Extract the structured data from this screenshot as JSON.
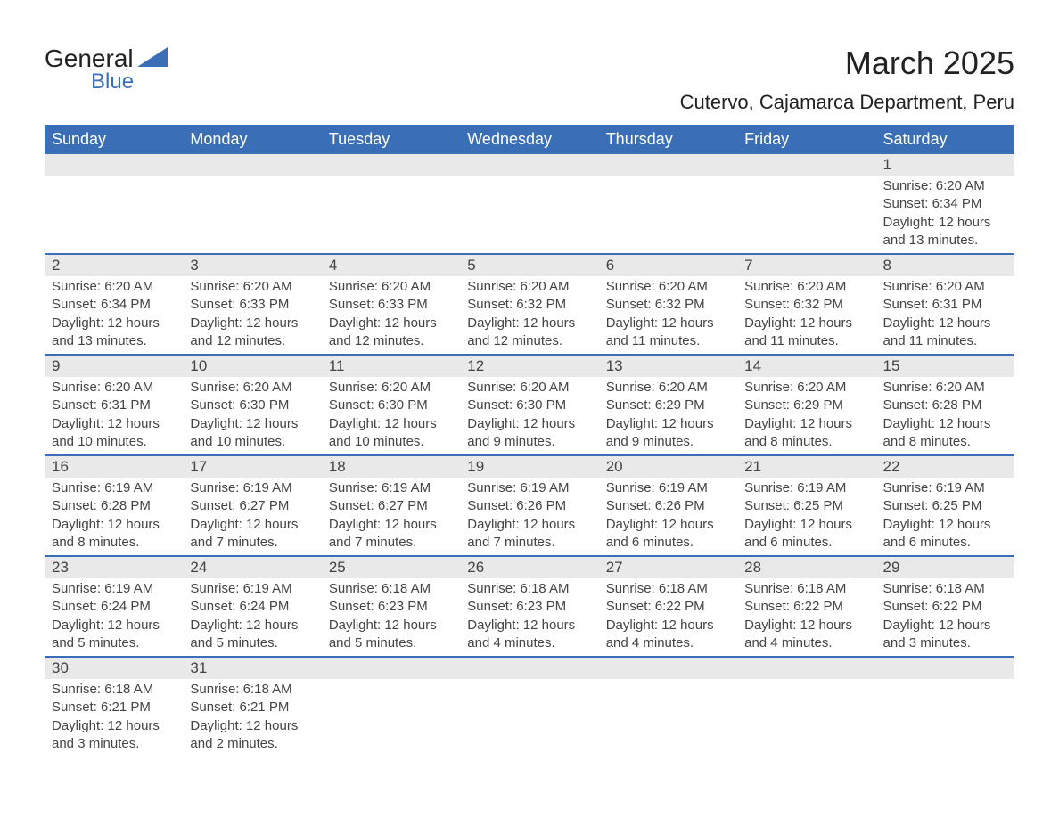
{
  "logo": {
    "text_general": "General",
    "text_blue": "Blue",
    "shape_color": "#3a6fb7"
  },
  "title": {
    "month": "March 2025",
    "location": "Cutervo, Cajamarca Department, Peru"
  },
  "colors": {
    "header_bg": "#3a6fb7",
    "header_text": "#ffffff",
    "daynum_bg": "#e9e9e9",
    "text": "#444444",
    "border": "#3a6fb7",
    "page_bg": "#ffffff"
  },
  "typography": {
    "month_title_fontsize": 36,
    "location_fontsize": 22,
    "day_header_fontsize": 18,
    "daynum_fontsize": 17,
    "body_fontsize": 15
  },
  "day_headers": [
    "Sunday",
    "Monday",
    "Tuesday",
    "Wednesday",
    "Thursday",
    "Friday",
    "Saturday"
  ],
  "weeks": [
    [
      {
        "num": "",
        "sunrise": "",
        "sunset": "",
        "daylight": ""
      },
      {
        "num": "",
        "sunrise": "",
        "sunset": "",
        "daylight": ""
      },
      {
        "num": "",
        "sunrise": "",
        "sunset": "",
        "daylight": ""
      },
      {
        "num": "",
        "sunrise": "",
        "sunset": "",
        "daylight": ""
      },
      {
        "num": "",
        "sunrise": "",
        "sunset": "",
        "daylight": ""
      },
      {
        "num": "",
        "sunrise": "",
        "sunset": "",
        "daylight": ""
      },
      {
        "num": "1",
        "sunrise": "Sunrise: 6:20 AM",
        "sunset": "Sunset: 6:34 PM",
        "daylight": "Daylight: 12 hours and 13 minutes."
      }
    ],
    [
      {
        "num": "2",
        "sunrise": "Sunrise: 6:20 AM",
        "sunset": "Sunset: 6:34 PM",
        "daylight": "Daylight: 12 hours and 13 minutes."
      },
      {
        "num": "3",
        "sunrise": "Sunrise: 6:20 AM",
        "sunset": "Sunset: 6:33 PM",
        "daylight": "Daylight: 12 hours and 12 minutes."
      },
      {
        "num": "4",
        "sunrise": "Sunrise: 6:20 AM",
        "sunset": "Sunset: 6:33 PM",
        "daylight": "Daylight: 12 hours and 12 minutes."
      },
      {
        "num": "5",
        "sunrise": "Sunrise: 6:20 AM",
        "sunset": "Sunset: 6:32 PM",
        "daylight": "Daylight: 12 hours and 12 minutes."
      },
      {
        "num": "6",
        "sunrise": "Sunrise: 6:20 AM",
        "sunset": "Sunset: 6:32 PM",
        "daylight": "Daylight: 12 hours and 11 minutes."
      },
      {
        "num": "7",
        "sunrise": "Sunrise: 6:20 AM",
        "sunset": "Sunset: 6:32 PM",
        "daylight": "Daylight: 12 hours and 11 minutes."
      },
      {
        "num": "8",
        "sunrise": "Sunrise: 6:20 AM",
        "sunset": "Sunset: 6:31 PM",
        "daylight": "Daylight: 12 hours and 11 minutes."
      }
    ],
    [
      {
        "num": "9",
        "sunrise": "Sunrise: 6:20 AM",
        "sunset": "Sunset: 6:31 PM",
        "daylight": "Daylight: 12 hours and 10 minutes."
      },
      {
        "num": "10",
        "sunrise": "Sunrise: 6:20 AM",
        "sunset": "Sunset: 6:30 PM",
        "daylight": "Daylight: 12 hours and 10 minutes."
      },
      {
        "num": "11",
        "sunrise": "Sunrise: 6:20 AM",
        "sunset": "Sunset: 6:30 PM",
        "daylight": "Daylight: 12 hours and 10 minutes."
      },
      {
        "num": "12",
        "sunrise": "Sunrise: 6:20 AM",
        "sunset": "Sunset: 6:30 PM",
        "daylight": "Daylight: 12 hours and 9 minutes."
      },
      {
        "num": "13",
        "sunrise": "Sunrise: 6:20 AM",
        "sunset": "Sunset: 6:29 PM",
        "daylight": "Daylight: 12 hours and 9 minutes."
      },
      {
        "num": "14",
        "sunrise": "Sunrise: 6:20 AM",
        "sunset": "Sunset: 6:29 PM",
        "daylight": "Daylight: 12 hours and 8 minutes."
      },
      {
        "num": "15",
        "sunrise": "Sunrise: 6:20 AM",
        "sunset": "Sunset: 6:28 PM",
        "daylight": "Daylight: 12 hours and 8 minutes."
      }
    ],
    [
      {
        "num": "16",
        "sunrise": "Sunrise: 6:19 AM",
        "sunset": "Sunset: 6:28 PM",
        "daylight": "Daylight: 12 hours and 8 minutes."
      },
      {
        "num": "17",
        "sunrise": "Sunrise: 6:19 AM",
        "sunset": "Sunset: 6:27 PM",
        "daylight": "Daylight: 12 hours and 7 minutes."
      },
      {
        "num": "18",
        "sunrise": "Sunrise: 6:19 AM",
        "sunset": "Sunset: 6:27 PM",
        "daylight": "Daylight: 12 hours and 7 minutes."
      },
      {
        "num": "19",
        "sunrise": "Sunrise: 6:19 AM",
        "sunset": "Sunset: 6:26 PM",
        "daylight": "Daylight: 12 hours and 7 minutes."
      },
      {
        "num": "20",
        "sunrise": "Sunrise: 6:19 AM",
        "sunset": "Sunset: 6:26 PM",
        "daylight": "Daylight: 12 hours and 6 minutes."
      },
      {
        "num": "21",
        "sunrise": "Sunrise: 6:19 AM",
        "sunset": "Sunset: 6:25 PM",
        "daylight": "Daylight: 12 hours and 6 minutes."
      },
      {
        "num": "22",
        "sunrise": "Sunrise: 6:19 AM",
        "sunset": "Sunset: 6:25 PM",
        "daylight": "Daylight: 12 hours and 6 minutes."
      }
    ],
    [
      {
        "num": "23",
        "sunrise": "Sunrise: 6:19 AM",
        "sunset": "Sunset: 6:24 PM",
        "daylight": "Daylight: 12 hours and 5 minutes."
      },
      {
        "num": "24",
        "sunrise": "Sunrise: 6:19 AM",
        "sunset": "Sunset: 6:24 PM",
        "daylight": "Daylight: 12 hours and 5 minutes."
      },
      {
        "num": "25",
        "sunrise": "Sunrise: 6:18 AM",
        "sunset": "Sunset: 6:23 PM",
        "daylight": "Daylight: 12 hours and 5 minutes."
      },
      {
        "num": "26",
        "sunrise": "Sunrise: 6:18 AM",
        "sunset": "Sunset: 6:23 PM",
        "daylight": "Daylight: 12 hours and 4 minutes."
      },
      {
        "num": "27",
        "sunrise": "Sunrise: 6:18 AM",
        "sunset": "Sunset: 6:22 PM",
        "daylight": "Daylight: 12 hours and 4 minutes."
      },
      {
        "num": "28",
        "sunrise": "Sunrise: 6:18 AM",
        "sunset": "Sunset: 6:22 PM",
        "daylight": "Daylight: 12 hours and 4 minutes."
      },
      {
        "num": "29",
        "sunrise": "Sunrise: 6:18 AM",
        "sunset": "Sunset: 6:22 PM",
        "daylight": "Daylight: 12 hours and 3 minutes."
      }
    ],
    [
      {
        "num": "30",
        "sunrise": "Sunrise: 6:18 AM",
        "sunset": "Sunset: 6:21 PM",
        "daylight": "Daylight: 12 hours and 3 minutes."
      },
      {
        "num": "31",
        "sunrise": "Sunrise: 6:18 AM",
        "sunset": "Sunset: 6:21 PM",
        "daylight": "Daylight: 12 hours and 2 minutes."
      },
      {
        "num": "",
        "sunrise": "",
        "sunset": "",
        "daylight": ""
      },
      {
        "num": "",
        "sunrise": "",
        "sunset": "",
        "daylight": ""
      },
      {
        "num": "",
        "sunrise": "",
        "sunset": "",
        "daylight": ""
      },
      {
        "num": "",
        "sunrise": "",
        "sunset": "",
        "daylight": ""
      },
      {
        "num": "",
        "sunrise": "",
        "sunset": "",
        "daylight": ""
      }
    ]
  ]
}
